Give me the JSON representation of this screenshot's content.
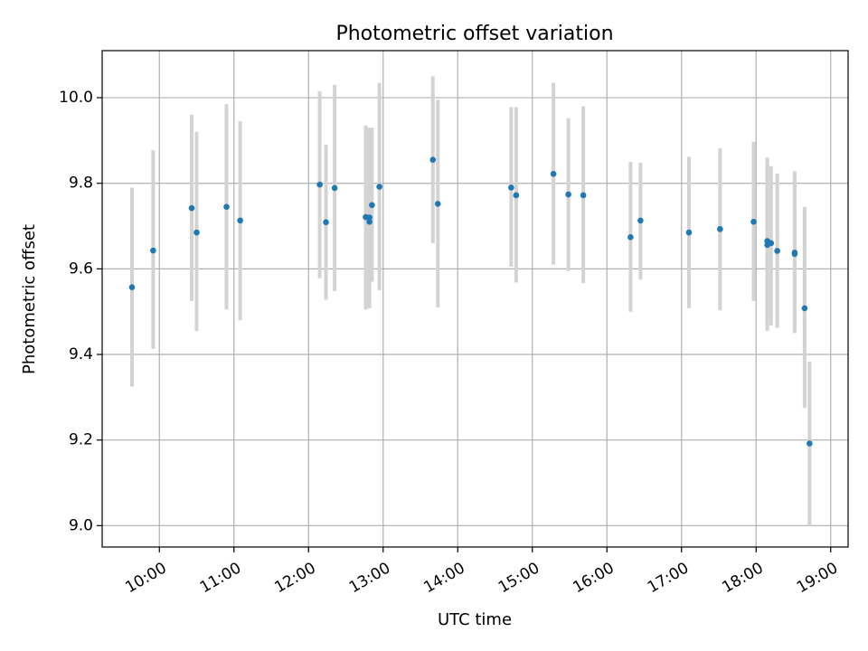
{
  "chart_data": {
    "type": "scatter",
    "title": "Photometric offset variation",
    "xlabel": "UTC time",
    "ylabel": "Photometric offset",
    "x_axis_type": "time",
    "xlim": [
      "09:14",
      "19:14"
    ],
    "ylim": [
      8.95,
      10.11
    ],
    "x_ticks": [
      "10:00",
      "11:00",
      "12:00",
      "13:00",
      "14:00",
      "15:00",
      "16:00",
      "17:00",
      "18:00",
      "19:00"
    ],
    "y_ticks": [
      9.0,
      9.2,
      9.4,
      9.6,
      9.8,
      10.0
    ],
    "y_tick_labels": [
      "9.0",
      "9.2",
      "9.4",
      "9.6",
      "9.8",
      "10.0"
    ],
    "grid": true,
    "marker_color": "#1f77b4",
    "errorbar_color": "#d3d3d3",
    "points": [
      {
        "t": "09:38",
        "y": 9.557,
        "lo": 9.325,
        "hi": 9.79
      },
      {
        "t": "09:55",
        "y": 9.643,
        "lo": 9.413,
        "hi": 9.877
      },
      {
        "t": "10:26",
        "y": 9.742,
        "lo": 9.525,
        "hi": 9.96
      },
      {
        "t": "10:30",
        "y": 9.685,
        "lo": 9.455,
        "hi": 9.92
      },
      {
        "t": "10:54",
        "y": 9.745,
        "lo": 9.505,
        "hi": 9.985
      },
      {
        "t": "11:05",
        "y": 9.713,
        "lo": 9.48,
        "hi": 9.945
      },
      {
        "t": "12:09",
        "y": 9.797,
        "lo": 9.578,
        "hi": 10.015
      },
      {
        "t": "12:14",
        "y": 9.709,
        "lo": 9.528,
        "hi": 9.89
      },
      {
        "t": "12:21",
        "y": 9.789,
        "lo": 9.548,
        "hi": 10.03
      },
      {
        "t": "12:46",
        "y": 9.721,
        "lo": 9.505,
        "hi": 9.935
      },
      {
        "t": "12:49",
        "y": 9.72,
        "lo": 9.508,
        "hi": 9.93
      },
      {
        "t": "12:49",
        "y": 9.71,
        "lo": 9.51,
        "hi": 9.93
      },
      {
        "t": "12:51",
        "y": 9.749,
        "lo": 9.57,
        "hi": 9.93
      },
      {
        "t": "12:57",
        "y": 9.792,
        "lo": 9.55,
        "hi": 10.035
      },
      {
        "t": "13:40",
        "y": 9.855,
        "lo": 9.66,
        "hi": 10.05
      },
      {
        "t": "13:44",
        "y": 9.752,
        "lo": 9.51,
        "hi": 9.995
      },
      {
        "t": "14:43",
        "y": 9.79,
        "lo": 9.605,
        "hi": 9.978
      },
      {
        "t": "14:47",
        "y": 9.772,
        "lo": 9.568,
        "hi": 9.978
      },
      {
        "t": "15:17",
        "y": 9.822,
        "lo": 9.61,
        "hi": 10.035
      },
      {
        "t": "15:29",
        "y": 9.774,
        "lo": 9.595,
        "hi": 9.952
      },
      {
        "t": "15:41",
        "y": 9.772,
        "lo": 9.567,
        "hi": 9.98
      },
      {
        "t": "16:19",
        "y": 9.674,
        "lo": 9.5,
        "hi": 9.85
      },
      {
        "t": "16:27",
        "y": 9.713,
        "lo": 9.575,
        "hi": 9.848
      },
      {
        "t": "17:06",
        "y": 9.685,
        "lo": 9.508,
        "hi": 9.862
      },
      {
        "t": "17:31",
        "y": 9.693,
        "lo": 9.503,
        "hi": 9.882
      },
      {
        "t": "17:58",
        "y": 9.71,
        "lo": 9.525,
        "hi": 9.897
      },
      {
        "t": "18:09",
        "y": 9.665,
        "lo": 9.455,
        "hi": 9.86
      },
      {
        "t": "18:09",
        "y": 9.656,
        "lo": 9.46,
        "hi": 9.85
      },
      {
        "t": "18:12",
        "y": 9.66,
        "lo": 9.468,
        "hi": 9.84
      },
      {
        "t": "18:17",
        "y": 9.642,
        "lo": 9.462,
        "hi": 9.823
      },
      {
        "t": "18:31",
        "y": 9.638,
        "lo": 9.45,
        "hi": 9.828
      },
      {
        "t": "18:31",
        "y": 9.635,
        "lo": 9.46,
        "hi": 9.82
      },
      {
        "t": "18:39",
        "y": 9.508,
        "lo": 9.275,
        "hi": 9.745
      },
      {
        "t": "18:43",
        "y": 9.192,
        "lo": 9.0,
        "hi": 9.383
      }
    ]
  }
}
